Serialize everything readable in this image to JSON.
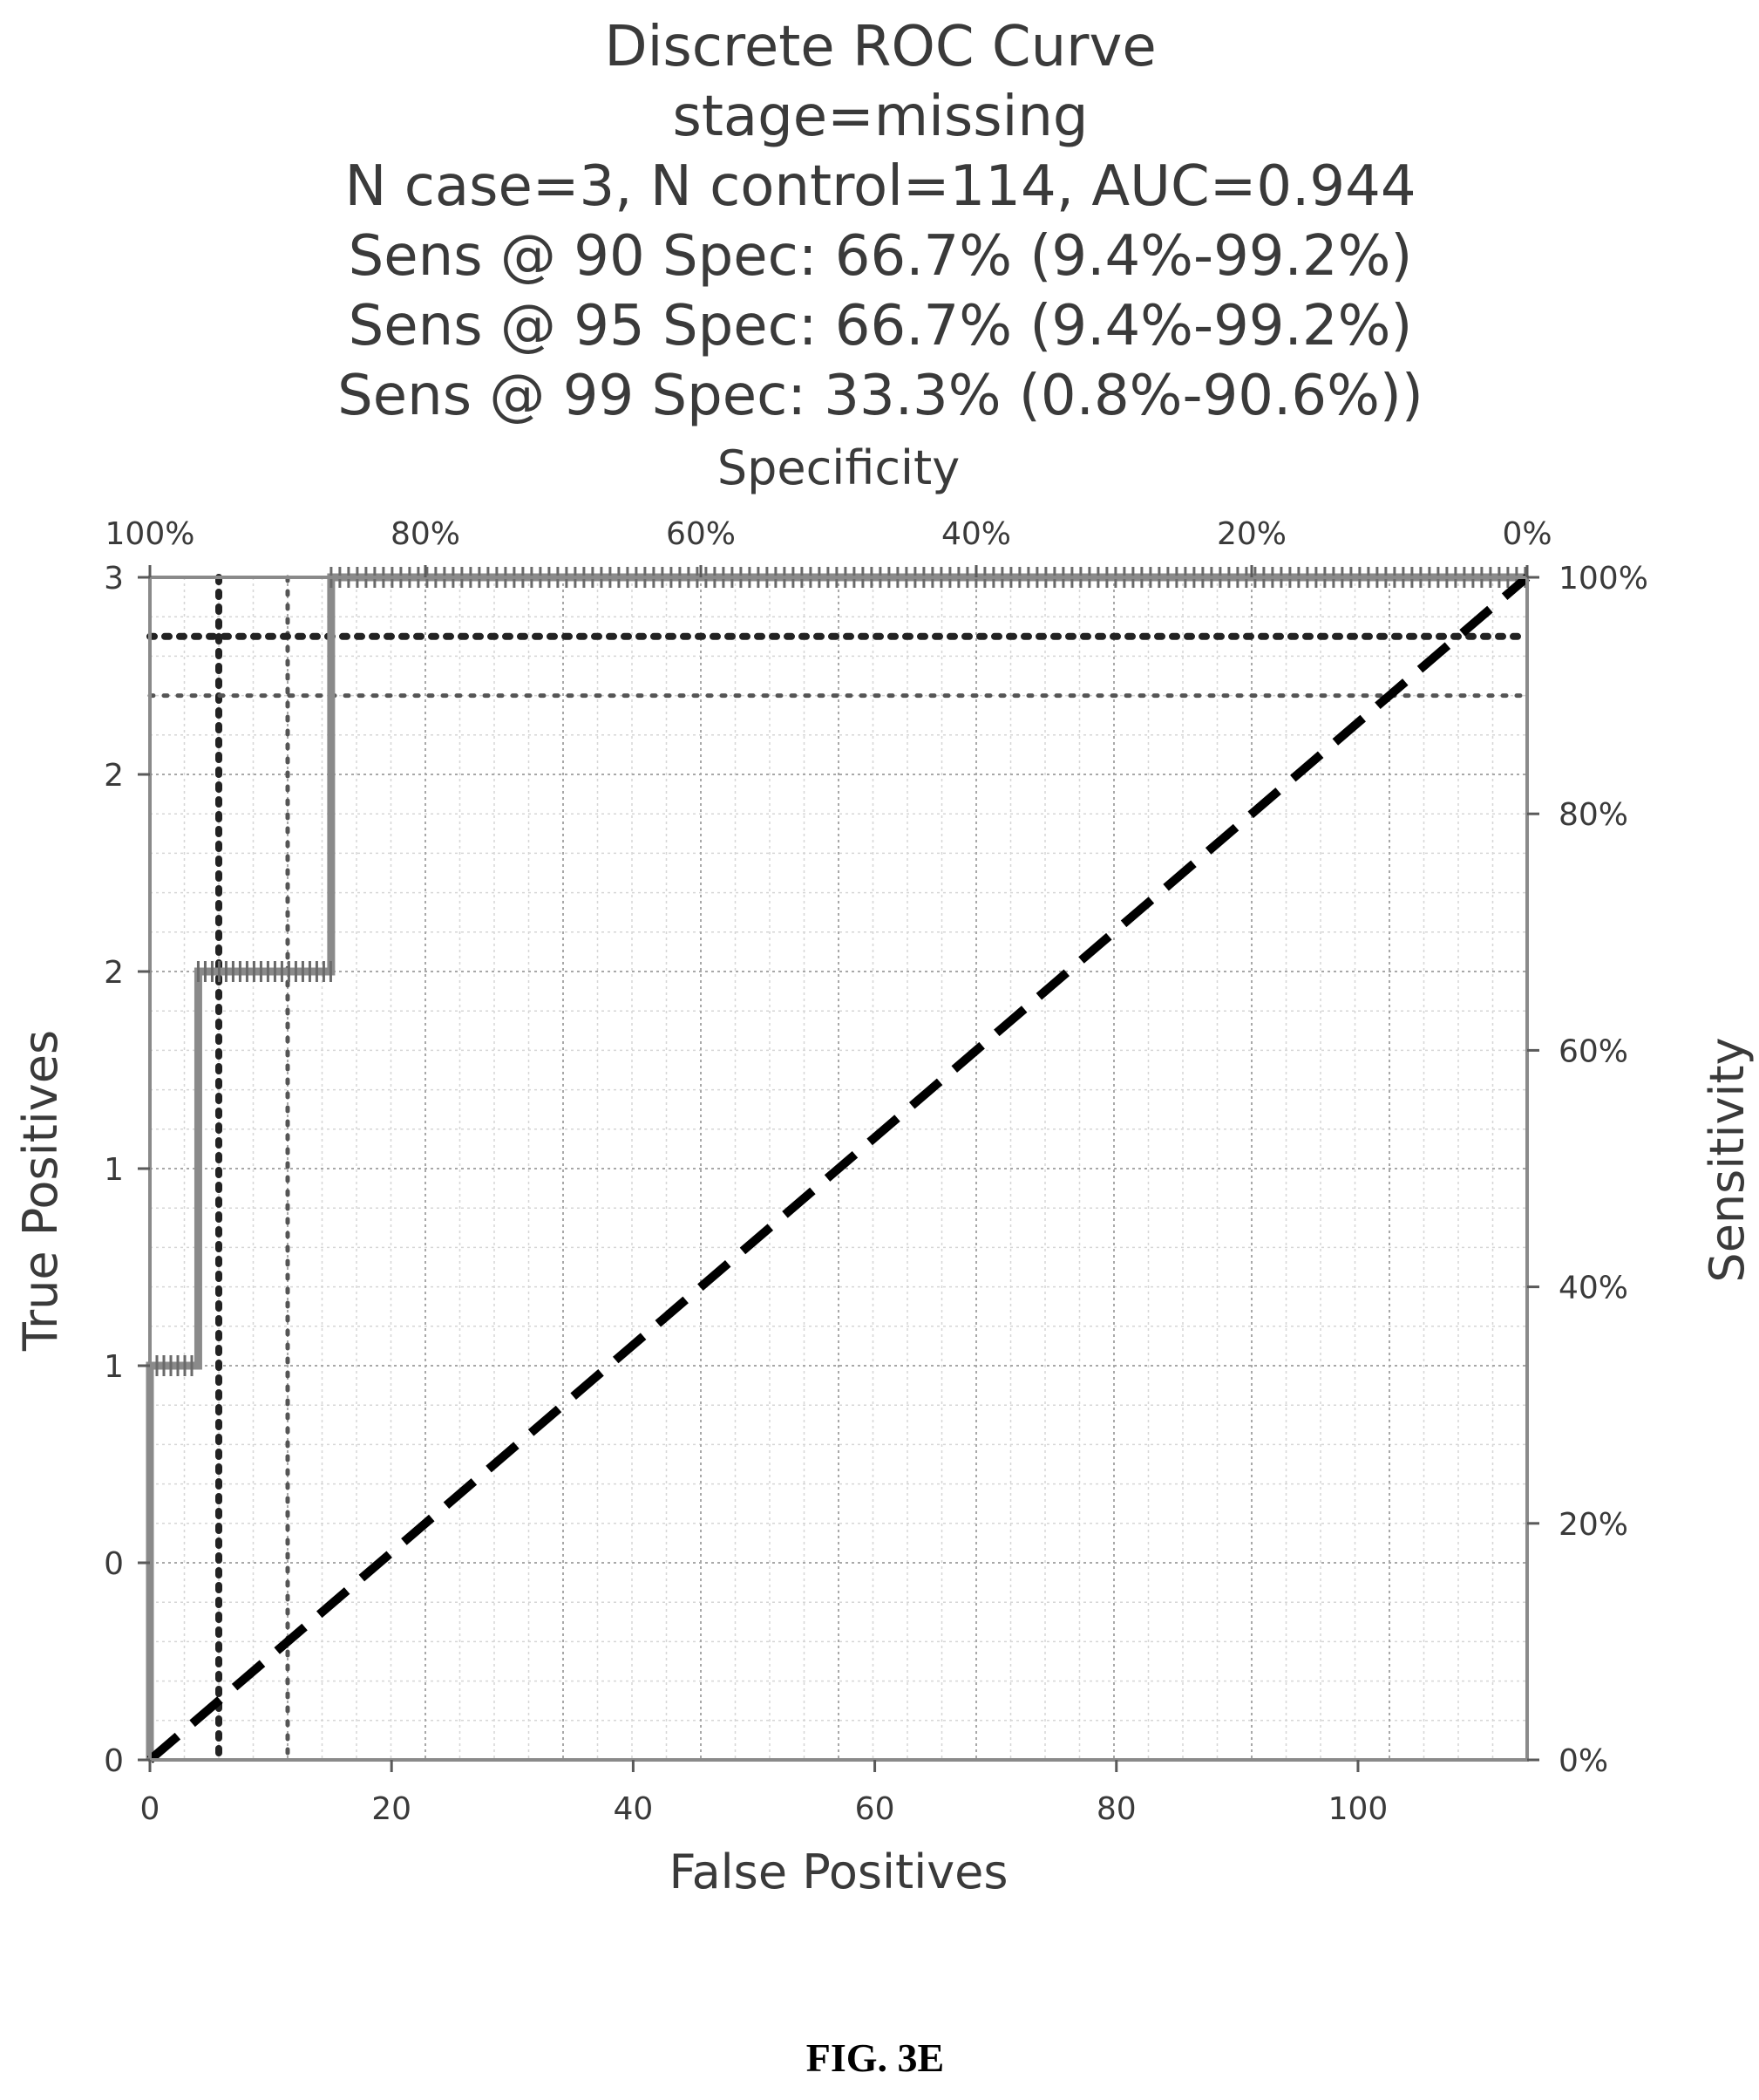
{
  "chart_data": {
    "type": "line",
    "title_lines": [
      "Discrete ROC Curve",
      "stage=missing",
      "N case=3, N control=114, AUC=0.944",
      "Sens @ 90 Spec: 66.7% (9.4%-99.2%)",
      "Sens @ 95 Spec: 66.7% (9.4%-99.2%)",
      "Sens @ 99 Spec: 33.3% (0.8%-90.6%))"
    ],
    "xlabel": "False Positives",
    "ylabel": "True Positives",
    "top_xlabel": "Specificity",
    "right_ylabel": "Sensitivity",
    "xlim": [
      0,
      114
    ],
    "ylim": [
      0,
      3
    ],
    "x_ticks": [
      0,
      20,
      40,
      60,
      80,
      100
    ],
    "x_tick_labels": [
      "0",
      "20",
      "40",
      "60",
      "80",
      "100"
    ],
    "y_ticks": [
      0,
      0.5,
      1,
      1.5,
      2,
      2.5,
      3
    ],
    "y_tick_labels": [
      "0",
      "0",
      "1",
      "1",
      "2",
      "2",
      "3"
    ],
    "top_ticks": [
      1.0,
      0.8,
      0.6,
      0.4,
      0.2,
      0.0
    ],
    "top_tick_labels": [
      "100%",
      "80%",
      "60%",
      "40%",
      "20%",
      "0%"
    ],
    "right_ticks": [
      0.0,
      0.2,
      0.4,
      0.6,
      0.8,
      1.0
    ],
    "right_tick_labels": [
      "0%",
      "20%",
      "40%",
      "60%",
      "80%",
      "100%"
    ],
    "grid": true,
    "series": [
      {
        "style": "solid",
        "color": "#8a8a8a",
        "x": [
          0,
          0,
          4,
          4,
          15,
          15,
          114
        ],
        "y": [
          0,
          1,
          1,
          2,
          2,
          3,
          3
        ]
      },
      {
        "style": "dashed",
        "color": "#000000",
        "x": [
          0,
          114
        ],
        "y": [
          0,
          3
        ]
      }
    ],
    "reference_lines": [
      {
        "orientation": "vertical",
        "x": 5.7,
        "style": "dotted-heavy"
      },
      {
        "orientation": "vertical",
        "x": 11.4,
        "style": "dotted"
      },
      {
        "orientation": "horizontal",
        "y": 2.85,
        "style": "dotted-heavy"
      },
      {
        "orientation": "horizontal",
        "y": 2.7,
        "style": "dotted"
      }
    ]
  },
  "caption": "FIG. 3E"
}
